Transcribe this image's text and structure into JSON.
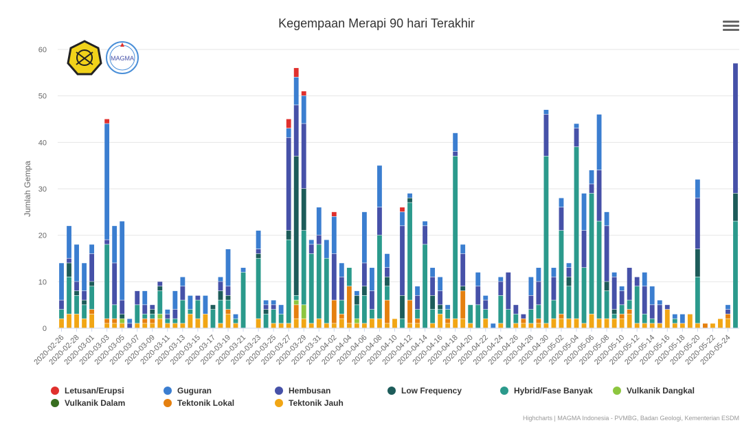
{
  "title": "Kegempaan Merapi 90 hari Terakhir",
  "credits": "Highcharts | MAGMA Indonesia - PVMBG, Badan Geologi, Kementerian ESDM",
  "logos": {
    "esdm": "ESDM",
    "magma": "MAGMA"
  },
  "chart_data": {
    "type": "bar",
    "stacked": true,
    "title": "Kegempaan Merapi 90 hari Terakhir",
    "xlabel": "",
    "ylabel": "Jumlah Gempa",
    "ylim": [
      0,
      60
    ],
    "yticks": [
      0,
      10,
      20,
      30,
      40,
      50,
      60
    ],
    "grid": true,
    "legend_position": "bottom",
    "categories": [
      "2020-02-26",
      "2020-02-27",
      "2020-02-28",
      "2020-02-29",
      "2020-03-01",
      "2020-03-02",
      "2020-03-03",
      "2020-03-04",
      "2020-03-05",
      "2020-03-06",
      "2020-03-07",
      "2020-03-08",
      "2020-03-09",
      "2020-03-10",
      "2020-03-11",
      "2020-03-12",
      "2020-03-13",
      "2020-03-14",
      "2020-03-15",
      "2020-03-16",
      "2020-03-17",
      "2020-03-18",
      "2020-03-19",
      "2020-03-20",
      "2020-03-21",
      "2020-03-22",
      "2020-03-23",
      "2020-03-24",
      "2020-03-25",
      "2020-03-26",
      "2020-03-27",
      "2020-03-28",
      "2020-03-29",
      "2020-03-30",
      "2020-03-31",
      "2020-04-01",
      "2020-04-02",
      "2020-04-03",
      "2020-04-04",
      "2020-04-05",
      "2020-04-06",
      "2020-04-07",
      "2020-04-08",
      "2020-04-09",
      "2020-04-10",
      "2020-04-11",
      "2020-04-12",
      "2020-04-13",
      "2020-04-14",
      "2020-04-15",
      "2020-04-16",
      "2020-04-17",
      "2020-04-18",
      "2020-04-19",
      "2020-04-20",
      "2020-04-21",
      "2020-04-22",
      "2020-04-23",
      "2020-04-24",
      "2020-04-25",
      "2020-04-26",
      "2020-04-27",
      "2020-04-28",
      "2020-04-29",
      "2020-04-30",
      "2020-05-01",
      "2020-05-02",
      "2020-05-03",
      "2020-05-04",
      "2020-05-05",
      "2020-05-06",
      "2020-05-07",
      "2020-05-08",
      "2020-05-09",
      "2020-05-10",
      "2020-05-11",
      "2020-05-12",
      "2020-05-13",
      "2020-05-14",
      "2020-05-15",
      "2020-05-16",
      "2020-05-17",
      "2020-05-18",
      "2020-05-19",
      "2020-05-20",
      "2020-05-21",
      "2020-05-22",
      "2020-05-23",
      "2020-05-24",
      "2020-05-25"
    ],
    "tick_labels": [
      "2020-02-26",
      "2020-02-28",
      "2020-03-01",
      "2020-03-03",
      "2020-03-05",
      "2020-03-07",
      "2020-03-09",
      "2020-03-11",
      "2020-03-13",
      "2020-03-15",
      "2020-03-17",
      "2020-03-19",
      "2020-03-21",
      "2020-03-23",
      "2020-03-25",
      "2020-03-27",
      "2020-03-29",
      "2020-03-31",
      "2020-04-02",
      "2020-04-04",
      "2020-04-06",
      "2020-04-08",
      "2020-04-10",
      "2020-04-12",
      "2020-04-14",
      "2020-04-16",
      "2020-04-18",
      "2020-04-20",
      "2020-04-22",
      "2020-04-24",
      "2020-04-26",
      "2020-04-28",
      "2020-04-30",
      "2020-05-02",
      "2020-05-04",
      "2020-05-06",
      "2020-05-08",
      "2020-05-10",
      "2020-05-12",
      "2020-05-14",
      "2020-05-16",
      "2020-05-18",
      "2020-05-20",
      "2020-05-22",
      "2020-05-24"
    ],
    "series": [
      {
        "name": "Tektonik Jauh",
        "color": "#f1a615",
        "values": [
          2,
          3,
          3,
          2,
          3,
          0,
          1,
          1,
          1,
          0,
          1,
          1,
          1,
          2,
          1,
          1,
          1,
          3,
          2,
          3,
          0,
          1,
          3,
          1,
          0,
          0,
          2,
          0,
          1,
          1,
          1,
          2,
          2,
          1,
          2,
          1,
          1,
          2,
          1,
          1,
          1,
          2,
          2,
          1,
          2,
          0,
          1,
          1,
          0,
          1,
          3,
          1,
          2,
          2,
          1,
          0,
          2,
          0,
          1,
          0,
          1,
          1,
          1,
          1,
          1,
          2,
          2,
          2,
          2,
          1,
          3,
          2,
          2,
          2,
          2,
          3,
          1,
          1,
          1,
          1,
          4,
          1,
          1,
          3,
          1,
          0,
          1,
          2,
          2,
          0
        ]
      },
      {
        "name": "Tektonik Lokal",
        "color": "#e5800f",
        "values": [
          0,
          0,
          0,
          0,
          1,
          0,
          1,
          1,
          0,
          0,
          0,
          1,
          1,
          0,
          0,
          0,
          0,
          0,
          0,
          0,
          0,
          0,
          1,
          0,
          0,
          0,
          0,
          0,
          0,
          0,
          0,
          3,
          0,
          0,
          0,
          0,
          5,
          1,
          8,
          0,
          0,
          0,
          0,
          5,
          0,
          0,
          5,
          1,
          0,
          0,
          0,
          1,
          0,
          6,
          0,
          0,
          0,
          0,
          0,
          0,
          0,
          1,
          0,
          1,
          0,
          0,
          1,
          0,
          0,
          0,
          0,
          0,
          0,
          0,
          1,
          1,
          0,
          0,
          0,
          0,
          0,
          0,
          0,
          0,
          0,
          1,
          0,
          0,
          1,
          0
        ]
      },
      {
        "name": "Vulkanik Dalam",
        "color": "#386e20",
        "values": [
          0,
          0,
          0,
          0,
          0,
          0,
          0,
          0,
          0,
          0,
          0,
          0,
          0,
          0,
          0,
          0,
          0,
          0,
          0,
          0,
          0,
          0,
          0,
          0,
          0,
          0,
          0,
          0,
          0,
          0,
          0,
          0,
          0,
          0,
          0,
          0,
          0,
          0,
          0,
          0,
          0,
          0,
          0,
          0,
          0,
          0,
          0,
          0,
          0,
          0,
          0,
          0,
          0,
          0,
          0,
          0,
          0,
          0,
          0,
          0,
          0,
          0,
          0,
          0,
          0,
          0,
          0,
          0,
          0,
          0,
          0,
          0,
          0,
          0,
          0,
          0,
          0,
          0,
          0,
          0,
          0,
          0,
          0,
          0,
          0,
          0,
          0,
          0,
          0,
          0
        ]
      },
      {
        "name": "Vulkanik Dangkal",
        "color": "#8dc63f",
        "values": [
          0,
          0,
          0,
          0,
          0,
          0,
          0,
          0,
          1,
          0,
          0,
          0,
          0,
          1,
          0,
          0,
          0,
          0,
          0,
          0,
          0,
          0,
          0,
          0,
          0,
          0,
          0,
          0,
          0,
          0,
          0,
          1,
          3,
          0,
          0,
          0,
          0,
          0,
          0,
          1,
          0,
          0,
          0,
          0,
          0,
          0,
          0,
          0,
          0,
          0,
          0,
          0,
          0,
          0,
          0,
          0,
          0,
          0,
          0,
          0,
          0,
          0,
          0,
          0,
          0,
          0,
          0,
          0,
          0,
          0,
          0,
          0,
          0,
          0,
          0,
          0,
          0,
          0,
          0,
          0,
          0,
          0,
          0,
          0,
          0,
          0,
          0,
          0,
          0,
          0
        ]
      },
      {
        "name": "Hybrid/Fase Banyak",
        "color": "#2b9a8c",
        "values": [
          2,
          8,
          4,
          3,
          5,
          0,
          16,
          3,
          0,
          0,
          4,
          1,
          1,
          5,
          1,
          1,
          5,
          1,
          4,
          0,
          4,
          5,
          2,
          1,
          12,
          0,
          13,
          3,
          3,
          2,
          18,
          1,
          16,
          15,
          16,
          14,
          0,
          3,
          4,
          3,
          6,
          2,
          18,
          3,
          0,
          2,
          21,
          2,
          18,
          3,
          1,
          2,
          35,
          0,
          4,
          5,
          2,
          0,
          6,
          4,
          2,
          0,
          3,
          3,
          36,
          4,
          18,
          7,
          37,
          12,
          26,
          21,
          6,
          1,
          2,
          2,
          8,
          2,
          1,
          0,
          0,
          1,
          0,
          0,
          10,
          0,
          0,
          0,
          0,
          23
        ]
      },
      {
        "name": "Low Frequency",
        "color": "#1d5c5a",
        "values": [
          0,
          3,
          1,
          1,
          1,
          0,
          0,
          0,
          1,
          0,
          0,
          0,
          1,
          1,
          0,
          0,
          0,
          0,
          0,
          0,
          1,
          2,
          1,
          0,
          0,
          0,
          1,
          1,
          0,
          0,
          2,
          30,
          9,
          0,
          0,
          0,
          0,
          0,
          0,
          2,
          2,
          0,
          0,
          2,
          0,
          5,
          1,
          0,
          0,
          3,
          1,
          0,
          0,
          1,
          0,
          0,
          0,
          0,
          0,
          0,
          0,
          0,
          0,
          0,
          0,
          0,
          0,
          2,
          0,
          0,
          0,
          0,
          2,
          1,
          0,
          0,
          0,
          0,
          0,
          0,
          0,
          0,
          0,
          0,
          6,
          0,
          0,
          0,
          0,
          6
        ]
      },
      {
        "name": "Hembusan",
        "color": "#4651a8",
        "values": [
          2,
          1,
          2,
          2,
          6,
          0,
          1,
          9,
          3,
          1,
          3,
          2,
          1,
          1,
          1,
          2,
          3,
          0,
          1,
          0,
          0,
          2,
          2,
          0,
          0,
          0,
          1,
          1,
          1,
          0,
          20,
          11,
          14,
          2,
          2,
          0,
          10,
          5,
          0,
          0,
          5,
          4,
          6,
          2,
          0,
          15,
          0,
          3,
          4,
          4,
          3,
          0,
          1,
          7,
          0,
          4,
          2,
          0,
          3,
          8,
          2,
          1,
          3,
          5,
          9,
          5,
          5,
          2,
          4,
          8,
          2,
          11,
          12,
          7,
          3,
          7,
          2,
          6,
          3,
          4,
          1,
          0,
          0,
          0,
          11,
          0,
          0,
          0,
          1,
          28
        ]
      },
      {
        "name": "Guguran",
        "color": "#3b7ed0",
        "values": [
          8,
          7,
          8,
          6,
          2,
          0,
          25,
          8,
          17,
          1,
          0,
          3,
          0,
          0,
          1,
          4,
          2,
          3,
          0,
          4,
          0,
          1,
          8,
          1,
          1,
          0,
          4,
          1,
          1,
          2,
          2,
          6,
          6,
          1,
          6,
          4,
          8,
          3,
          0,
          1,
          11,
          5,
          9,
          3,
          0,
          3,
          1,
          2,
          1,
          2,
          3,
          1,
          4,
          2,
          0,
          3,
          1,
          1,
          1,
          0,
          0,
          0,
          4,
          3,
          1,
          2,
          2,
          1,
          1,
          8,
          3,
          12,
          3,
          1,
          1,
          0,
          0,
          3,
          4,
          1,
          0,
          1,
          2,
          0,
          4,
          0,
          0,
          0,
          1,
          0
        ]
      },
      {
        "name": "Letusan/Erupsi",
        "color": "#e0302d",
        "values": [
          0,
          0,
          0,
          0,
          0,
          0,
          1,
          0,
          0,
          0,
          0,
          0,
          0,
          0,
          0,
          0,
          0,
          0,
          0,
          0,
          0,
          0,
          0,
          0,
          0,
          0,
          0,
          0,
          0,
          0,
          2,
          2,
          1,
          0,
          0,
          0,
          1,
          0,
          0,
          0,
          0,
          0,
          0,
          0,
          0,
          1,
          0,
          0,
          0,
          0,
          0,
          0,
          0,
          0,
          0,
          0,
          0,
          0,
          0,
          0,
          0,
          0,
          0,
          0,
          0,
          0,
          0,
          0,
          0,
          0,
          0,
          0,
          0,
          0,
          0,
          0,
          0,
          0,
          0,
          0,
          0,
          0,
          0,
          0,
          0,
          0,
          0,
          0,
          0,
          0
        ]
      }
    ]
  },
  "legend": [
    {
      "label": "Letusan/Erupsi",
      "color": "#e0302d"
    },
    {
      "label": "Guguran",
      "color": "#3b7ed0"
    },
    {
      "label": "Hembusan",
      "color": "#4651a8"
    },
    {
      "label": "Low Frequency",
      "color": "#1d5c5a"
    },
    {
      "label": "Hybrid/Fase Banyak",
      "color": "#2b9a8c"
    },
    {
      "label": "Vulkanik Dangkal",
      "color": "#8dc63f"
    },
    {
      "label": "Vulkanik Dalam",
      "color": "#386e20"
    },
    {
      "label": "Tektonik Lokal",
      "color": "#e5800f"
    },
    {
      "label": "Tektonik Jauh",
      "color": "#f1a615"
    }
  ]
}
